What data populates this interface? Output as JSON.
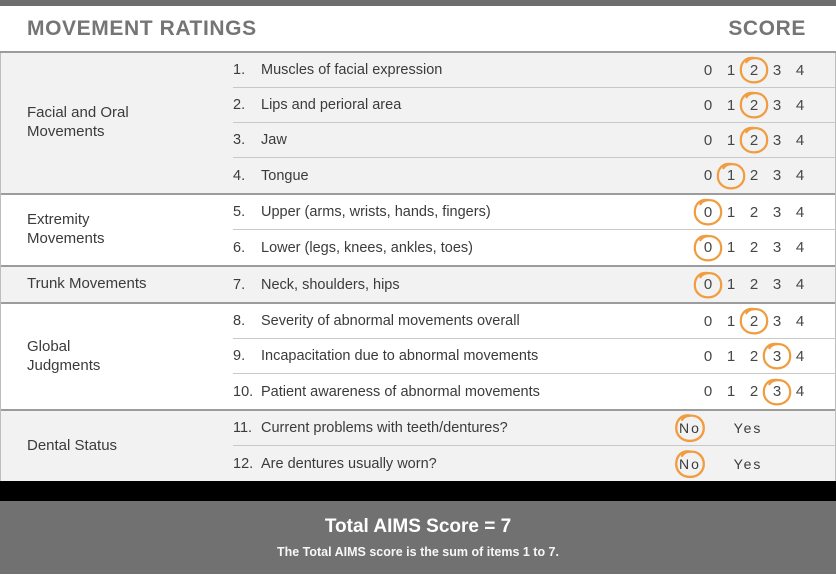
{
  "header": {
    "title": "MOVEMENT RATINGS",
    "score_label": "SCORE"
  },
  "scale_options": [
    "0",
    "1",
    "2",
    "3",
    "4"
  ],
  "binary_options": [
    "No",
    "Yes"
  ],
  "sections": [
    {
      "category": "Facial and Oral\nMovements",
      "rows": [
        {
          "num": "1.",
          "label": "Muscles of facial expression",
          "type": "scale",
          "selected": "2"
        },
        {
          "num": "2.",
          "label": "Lips and perioral area",
          "type": "scale",
          "selected": "2"
        },
        {
          "num": "3.",
          "label": "Jaw",
          "type": "scale",
          "selected": "2"
        },
        {
          "num": "4.",
          "label": "Tongue",
          "type": "scale",
          "selected": "1"
        }
      ]
    },
    {
      "category": "Extremity\nMovements",
      "rows": [
        {
          "num": "5.",
          "label": "Upper (arms, wrists, hands, fingers)",
          "type": "scale",
          "selected": "0"
        },
        {
          "num": "6.",
          "label": "Lower (legs, knees, ankles, toes)",
          "type": "scale",
          "selected": "0"
        }
      ]
    },
    {
      "category": "Trunk Movements",
      "rows": [
        {
          "num": "7.",
          "label": "Neck, shoulders, hips",
          "type": "scale",
          "selected": "0"
        }
      ]
    },
    {
      "category": "Global\nJudgments",
      "rows": [
        {
          "num": "8.",
          "label": "Severity of abnormal movements overall",
          "type": "scale",
          "selected": "2"
        },
        {
          "num": "9.",
          "label": "Incapacitation due to abnormal movements",
          "type": "scale",
          "selected": "3"
        },
        {
          "num": "10.",
          "label": "Patient awareness of abnormal movements",
          "type": "scale",
          "selected": "3"
        }
      ]
    },
    {
      "category": "Dental Status",
      "rows": [
        {
          "num": "11.",
          "label": "Current problems with teeth/dentures?",
          "type": "binary",
          "selected": "No"
        },
        {
          "num": "12.",
          "label": "Are dentures usually worn?",
          "type": "binary",
          "selected": "No"
        }
      ]
    }
  ],
  "footer": {
    "total_label": "Total AIMS Score = 7",
    "note": "The Total AIMS score is the sum of items 1 to 7."
  },
  "colors": {
    "accent_circle": "#F09C3F",
    "header_text": "#757575",
    "footer_bg": "#717171",
    "black_bar": "#000000",
    "group_alt_bg": "#F2F2F2"
  }
}
